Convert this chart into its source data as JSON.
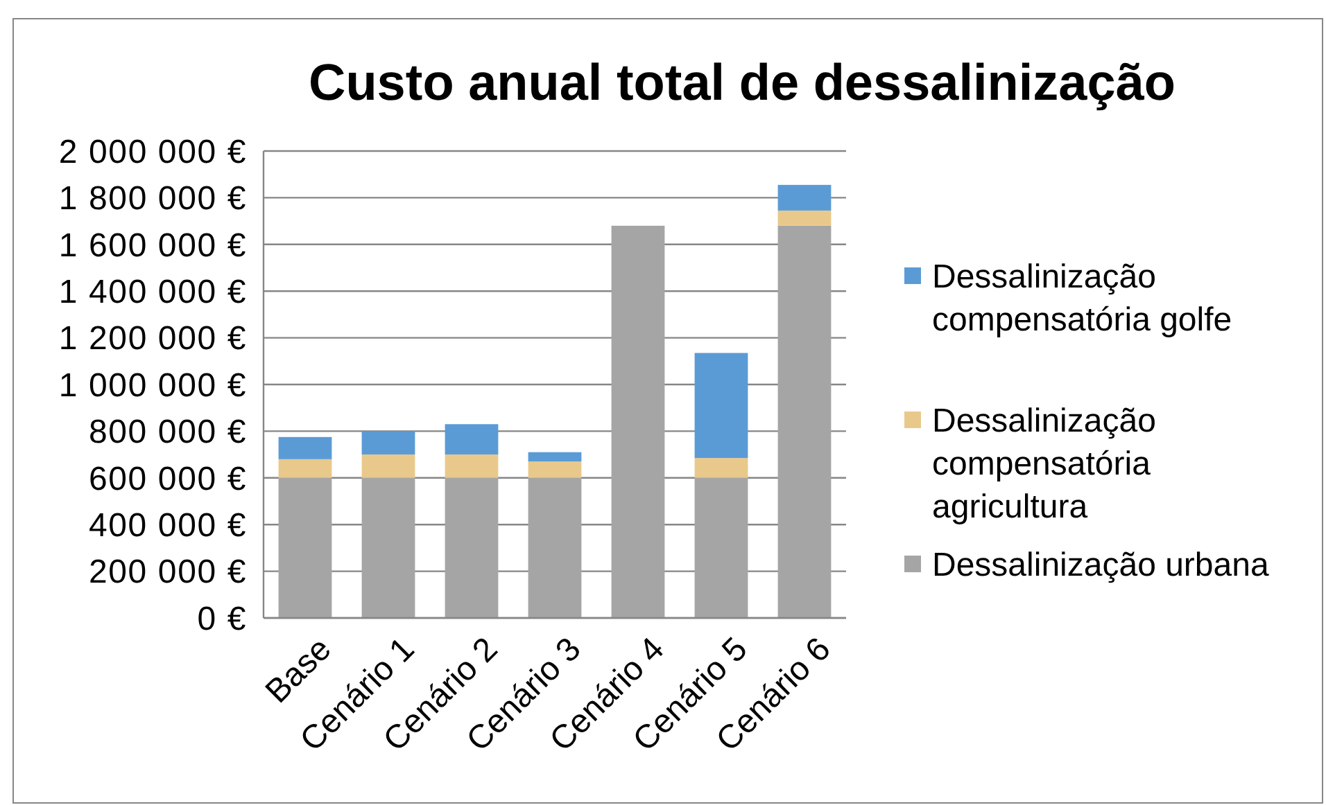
{
  "chart_data": {
    "type": "bar",
    "title": "Custo anual total de dessalinização",
    "categories": [
      "Base",
      "Cenário 1",
      "Cenário 2",
      "Cenário 3",
      "Cenário 4",
      "Cenário 5",
      "Cenário 6"
    ],
    "series": [
      {
        "name": "Dessalinização urbana",
        "color": "#a5a5a5",
        "values": [
          600000,
          600000,
          600000,
          600000,
          1680000,
          600000,
          1680000
        ]
      },
      {
        "name": "Dessalinização compensatória agricultura",
        "color": "#e9c98b",
        "values": [
          80000,
          100000,
          100000,
          70000,
          0,
          85000,
          65000
        ]
      },
      {
        "name": "Dessalinização compensatória golfe",
        "color": "#5b9bd5",
        "values": [
          95000,
          100000,
          130000,
          40000,
          0,
          450000,
          110000
        ]
      }
    ],
    "stacked": true,
    "ylim": [
      0,
      2000000
    ],
    "yticks": [
      {
        "value": 0,
        "label": "0 €"
      },
      {
        "value": 200000,
        "label": "200 000 €"
      },
      {
        "value": 400000,
        "label": "400 000 €"
      },
      {
        "value": 600000,
        "label": "600 000 €"
      },
      {
        "value": 800000,
        "label": "800 000 €"
      },
      {
        "value": 1000000,
        "label": "1 000 000 €"
      },
      {
        "value": 1200000,
        "label": "1 200 000 €"
      },
      {
        "value": 1400000,
        "label": "1 400 000 €"
      },
      {
        "value": 1600000,
        "label": "1 600 000 €"
      },
      {
        "value": 1800000,
        "label": "1 800 000 €"
      },
      {
        "value": 2000000,
        "label": "2 000 000 €"
      }
    ],
    "grid": "y",
    "legend": "right"
  }
}
